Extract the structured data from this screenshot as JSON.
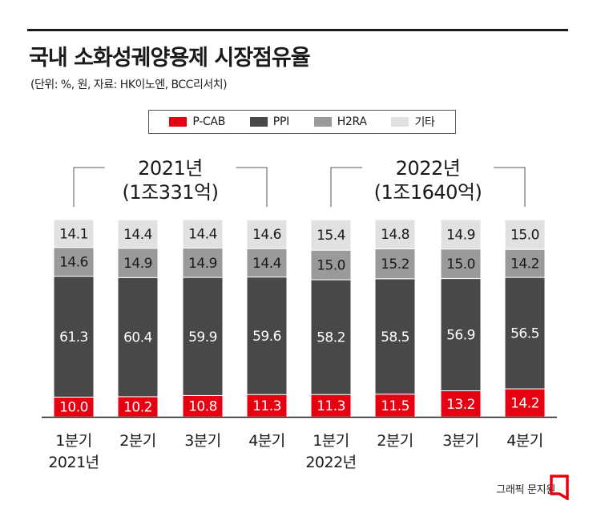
{
  "header": {
    "title": "국내 소화성궤양용제 시장점유율",
    "subtitle": "(단위: %, 원, 자료: HK이노엔, BCC리서치)"
  },
  "footer": {
    "credit": "그래픽 문지원"
  },
  "colors": {
    "P-CAB": "#e60012",
    "PPI": "#4a4749",
    "H2RA": "#9a9a9a",
    "기타": "#e1e1e1"
  },
  "chart_data": {
    "type": "bar",
    "stacked": true,
    "categories": [
      "1분기",
      "2분기",
      "3분기",
      "4분기",
      "1분기",
      "2분기",
      "3분기",
      "4분기"
    ],
    "year_sublabels": [
      "2021년",
      "",
      "",
      "",
      "2022년",
      "",
      "",
      ""
    ],
    "series": [
      {
        "name": "P-CAB",
        "values": [
          10.0,
          10.2,
          10.8,
          11.3,
          11.3,
          11.5,
          13.2,
          14.2
        ]
      },
      {
        "name": "PPI",
        "values": [
          61.3,
          60.4,
          59.9,
          59.6,
          58.2,
          58.5,
          56.9,
          56.5
        ]
      },
      {
        "name": "H2RA",
        "values": [
          14.6,
          14.9,
          14.9,
          14.4,
          15.0,
          15.2,
          15.0,
          14.2
        ]
      },
      {
        "name": "기타",
        "values": [
          14.1,
          14.4,
          14.4,
          14.6,
          15.4,
          14.8,
          14.9,
          15.0
        ]
      }
    ],
    "value_labels": [
      [
        "10.0",
        "10.2",
        "10.8",
        "11.3",
        "11.3",
        "11.5",
        "13.2",
        "14.2"
      ],
      [
        "61.3",
        "60.4",
        "59.9",
        "59.6",
        "58.2",
        "58.5",
        "56.9",
        "56.5"
      ],
      [
        "14.6",
        "14.9",
        "14.9",
        "14.4",
        "15.0",
        "15.2",
        "15.0",
        "14.2"
      ],
      [
        "14.1",
        "14.4",
        "14.4",
        "14.6",
        "15.4",
        "14.8",
        "14.9",
        "15.0"
      ]
    ],
    "groups": [
      {
        "year": "2021년",
        "total": "(1조331억)",
        "bars": [
          0,
          1,
          2,
          3
        ]
      },
      {
        "year": "2022년",
        "total": "(1조1640억)",
        "bars": [
          4,
          5,
          6,
          7
        ]
      }
    ],
    "legend_position": "top-center"
  }
}
